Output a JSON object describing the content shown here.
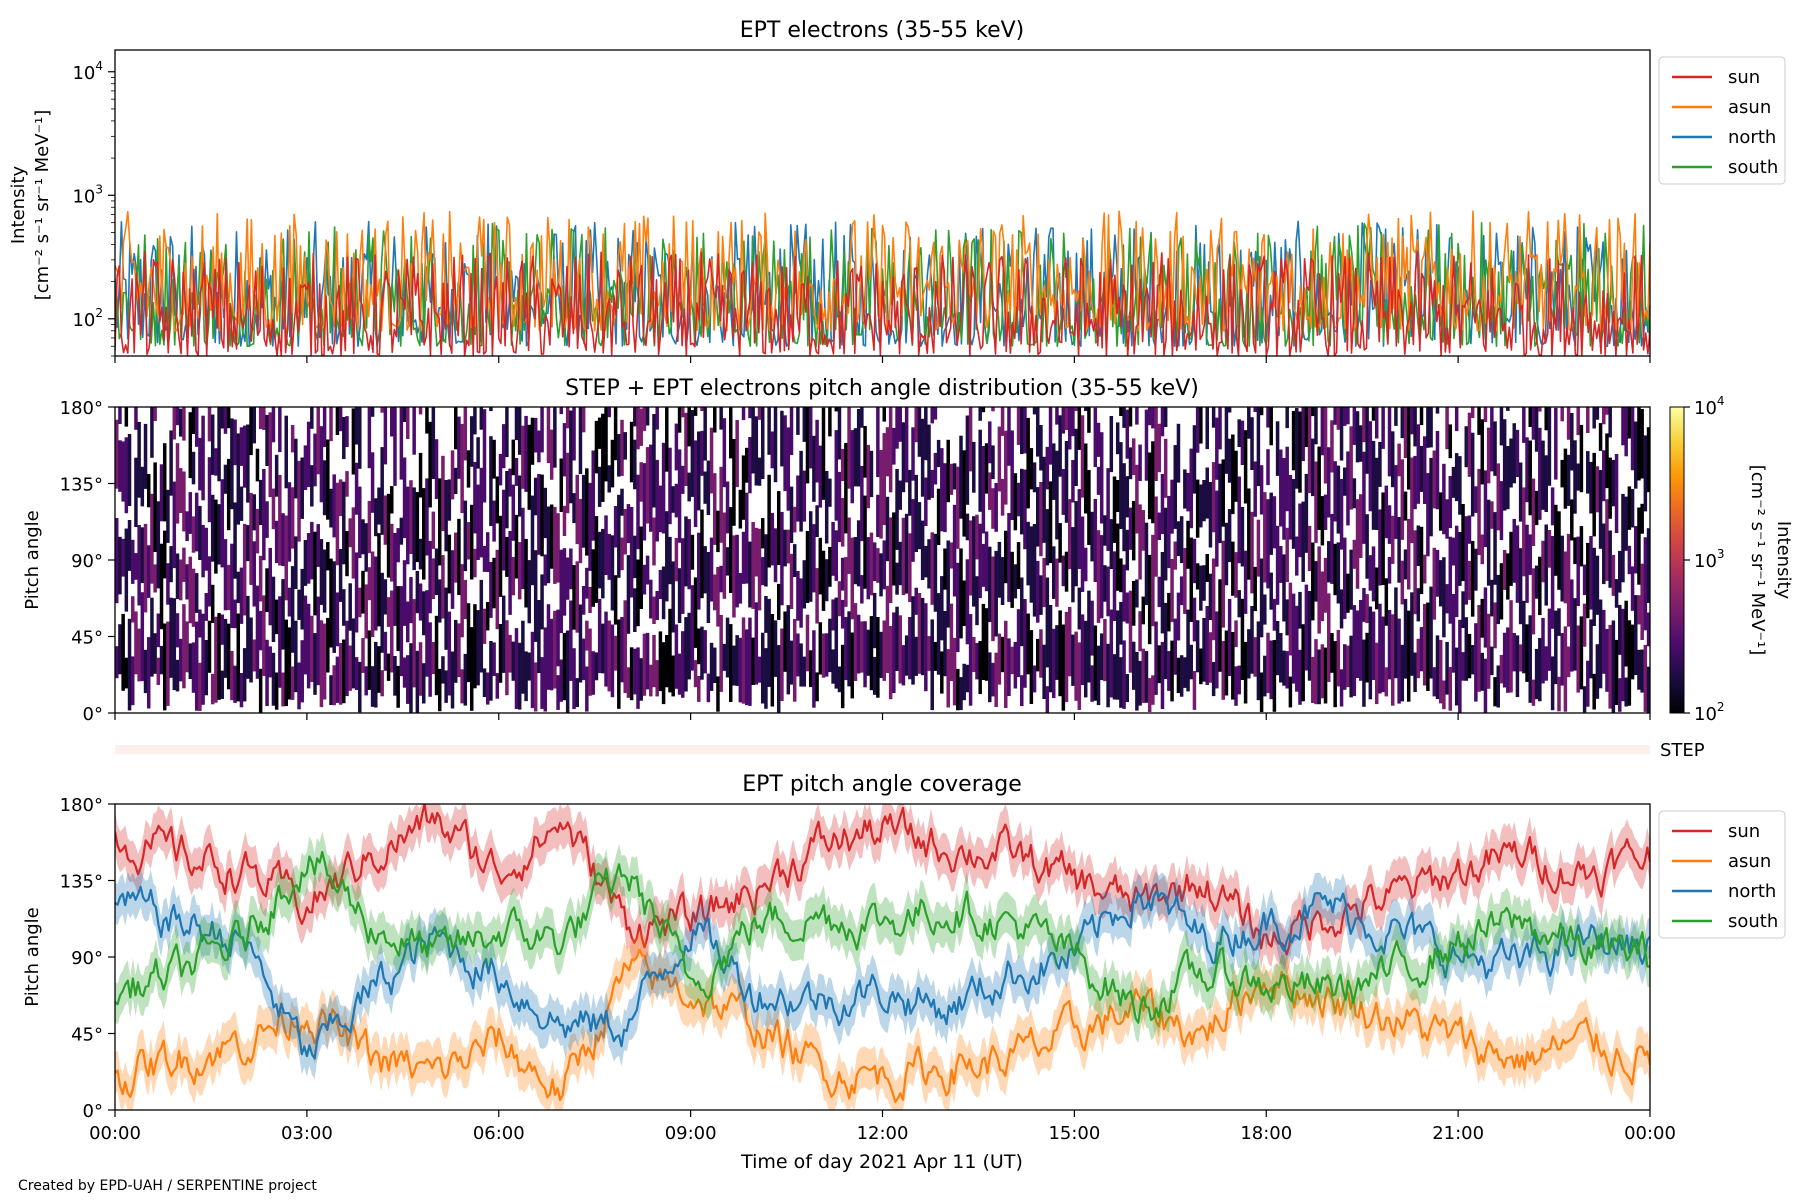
{
  "credit": "Created by EPD-UAH / SERPENTINE project",
  "x_axis": {
    "label": "Time of day 2021 Apr 11 (UT)",
    "ticks": [
      "00:00",
      "03:00",
      "06:00",
      "09:00",
      "12:00",
      "15:00",
      "18:00",
      "21:00",
      "00:00"
    ],
    "range_hours": [
      0,
      24
    ]
  },
  "series_colors": {
    "sun": "#d62728",
    "asun": "#ff7f0e",
    "north": "#1f77b4",
    "south": "#2ca02c"
  },
  "colormap": [
    "#000004",
    "#1b0c41",
    "#4a0c6b",
    "#781c6d",
    "#a52c60",
    "#cf4446",
    "#ed6925",
    "#fb9b06",
    "#f7d13d",
    "#fcffa4"
  ],
  "chart_data": [
    {
      "type": "line",
      "title": "EPT electrons (35-55 keV)",
      "ylabel_line1": "Intensity",
      "ylabel_line2": "[cm⁻² s⁻¹ sr⁻¹ MeV⁻¹]",
      "y_scale": "log",
      "ylim": [
        50,
        15000
      ],
      "yticks": [
        {
          "value": 100,
          "base": "10",
          "exp": "2"
        },
        {
          "value": 1000,
          "base": "10",
          "exp": "3"
        },
        {
          "value": 10000,
          "base": "10",
          "exp": "4"
        }
      ],
      "legend": {
        "position": "outside-right-top",
        "entries": [
          "sun",
          "asun",
          "north",
          "south"
        ]
      },
      "series": [
        {
          "name": "sun",
          "typical_range": [
            50,
            350
          ]
        },
        {
          "name": "asun",
          "typical_range": [
            80,
            750
          ]
        },
        {
          "name": "north",
          "typical_range": [
            60,
            620
          ]
        },
        {
          "name": "south",
          "typical_range": [
            60,
            600
          ]
        }
      ]
    },
    {
      "type": "heatmap",
      "title": "STEP + EPT electrons pitch angle distribution (35-55 keV)",
      "ylabel": "Pitch angle",
      "ylim": [
        0,
        180
      ],
      "yticks": [
        "0°",
        "45°",
        "90°",
        "135°",
        "180°"
      ],
      "colorbar": {
        "scale": "log",
        "range": [
          100,
          10000
        ],
        "label_line1": "Intensity",
        "label_line2": "[cm⁻² s⁻¹ sr⁻¹ MeV⁻¹]",
        "ticks": [
          {
            "value": 100,
            "base": "10",
            "exp": "2"
          },
          {
            "value": 1000,
            "base": "10",
            "exp": "3"
          },
          {
            "value": 10000,
            "base": "10",
            "exp": "4"
          }
        ]
      },
      "typical_intensity": [
        100,
        500
      ]
    },
    {
      "type": "heatmap",
      "label": "STEP",
      "note": "thin strip, very low intensity"
    },
    {
      "type": "line",
      "title": "EPT pitch angle coverage",
      "ylabel": "Pitch angle",
      "ylim": [
        0,
        180
      ],
      "yticks": [
        "0°",
        "45°",
        "90°",
        "135°",
        "180°"
      ],
      "legend": {
        "position": "outside-right-top",
        "entries": [
          "sun",
          "asun",
          "north",
          "south"
        ]
      },
      "series": [
        {
          "name": "sun",
          "x": [
            0,
            1,
            2,
            3,
            4,
            5,
            6,
            7,
            8,
            9,
            10,
            11,
            12,
            13,
            14,
            15,
            16,
            17,
            18,
            19,
            20,
            21,
            22,
            23,
            24
          ],
          "y": [
            160,
            150,
            140,
            120,
            150,
            170,
            140,
            170,
            110,
            110,
            130,
            155,
            165,
            155,
            150,
            135,
            120,
            135,
            100,
            115,
            125,
            140,
            150,
            140,
            150
          ]
        },
        {
          "name": "asun",
          "x": [
            0,
            1,
            2,
            3,
            4,
            5,
            6,
            7,
            8,
            9,
            10,
            11,
            12,
            13,
            14,
            15,
            16,
            17,
            18,
            19,
            20,
            21,
            22,
            23,
            24
          ],
          "y": [
            20,
            30,
            40,
            60,
            30,
            20,
            40,
            10,
            80,
            70,
            50,
            25,
            20,
            25,
            30,
            45,
            60,
            45,
            80,
            65,
            55,
            40,
            30,
            40,
            30
          ]
        },
        {
          "name": "north",
          "x": [
            0,
            1,
            2,
            3,
            4,
            5,
            6,
            7,
            8,
            9,
            10,
            11,
            12,
            13,
            14,
            15,
            16,
            17,
            18,
            19,
            20,
            21,
            22,
            23,
            24
          ],
          "y": [
            120,
            110,
            100,
            30,
            70,
            100,
            80,
            50,
            50,
            110,
            70,
            65,
            70,
            60,
            80,
            90,
            130,
            100,
            110,
            120,
            105,
            90,
            85,
            100,
            95
          ]
        },
        {
          "name": "south",
          "x": [
            0,
            1,
            2,
            3,
            4,
            5,
            6,
            7,
            8,
            9,
            10,
            11,
            12,
            13,
            14,
            15,
            16,
            17,
            18,
            19,
            20,
            21,
            22,
            23,
            24
          ],
          "y": [
            70,
            80,
            100,
            150,
            110,
            90,
            105,
            100,
            140,
            75,
            110,
            115,
            110,
            120,
            110,
            90,
            60,
            80,
            75,
            70,
            80,
            100,
            110,
            95,
            90
          ]
        }
      ]
    }
  ]
}
